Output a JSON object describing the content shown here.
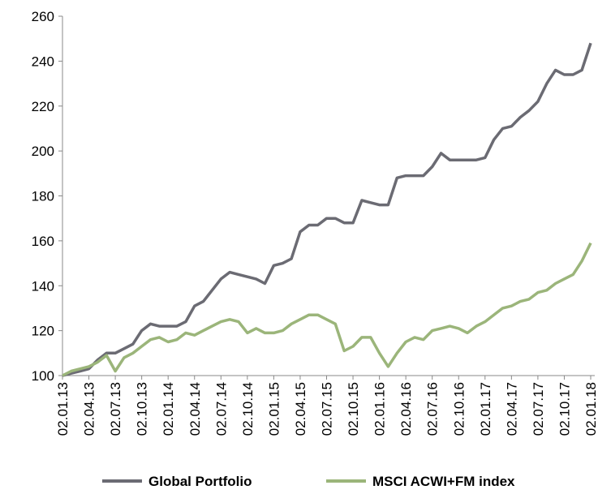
{
  "chart_data": {
    "type": "line",
    "categories": [
      "02.01.13",
      null,
      null,
      "02.04.13",
      null,
      null,
      "02.07.13",
      null,
      null,
      "02.10.13",
      null,
      null,
      "02.01.14",
      null,
      null,
      "02.04.14",
      null,
      null,
      "02.07.14",
      null,
      null,
      "02.10.14",
      null,
      null,
      "02.01.15",
      null,
      null,
      "02.04.15",
      null,
      null,
      "02.07.15",
      null,
      null,
      "02.10.15",
      null,
      null,
      "02.01.16",
      null,
      null,
      "02.04.16",
      null,
      null,
      "02.07.16",
      null,
      null,
      "02.10.16",
      null,
      null,
      "02.01.17",
      null,
      null,
      "02.04.17",
      null,
      null,
      "02.07.17",
      null,
      null,
      "02.10.17",
      null,
      null,
      "02.01.18"
    ],
    "series": [
      {
        "name": "Global Portfolio",
        "color": "#6b6b73",
        "values": [
          100,
          101,
          102,
          103,
          107,
          110,
          110,
          112,
          114,
          120,
          123,
          122,
          122,
          122,
          124,
          131,
          133,
          138,
          143,
          146,
          145,
          144,
          143,
          141,
          149,
          150,
          152,
          164,
          167,
          167,
          170,
          170,
          168,
          168,
          178,
          177,
          176,
          176,
          188,
          189,
          189,
          189,
          193,
          199,
          196,
          196,
          196,
          196,
          197,
          205,
          210,
          211,
          215,
          218,
          222,
          230,
          236,
          234,
          234,
          236,
          248
        ]
      },
      {
        "name": "MSCI ACWI+FM index",
        "color": "#9bb57a",
        "values": [
          100,
          102,
          103,
          104,
          106,
          109,
          102,
          108,
          110,
          113,
          116,
          117,
          115,
          116,
          119,
          118,
          120,
          122,
          124,
          125,
          124,
          119,
          121,
          119,
          119,
          120,
          123,
          125,
          127,
          127,
          125,
          123,
          111,
          113,
          117,
          117,
          110,
          104,
          110,
          115,
          117,
          116,
          120,
          121,
          122,
          121,
          119,
          122,
          124,
          127,
          130,
          131,
          133,
          134,
          137,
          138,
          141,
          143,
          145,
          151,
          159
        ]
      }
    ],
    "ylim": [
      100,
      260
    ],
    "yticks": [
      100,
      120,
      140,
      160,
      180,
      200,
      220,
      240,
      260
    ]
  }
}
